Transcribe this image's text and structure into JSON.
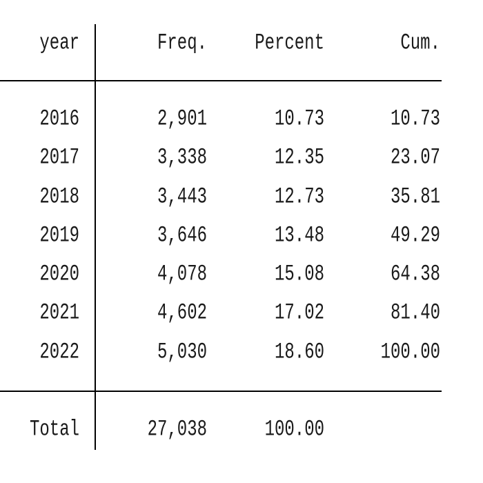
{
  "table": {
    "header": [
      "year",
      "Freq.",
      "Percent",
      "Cum."
    ],
    "rows": [
      [
        "2016",
        "2,901",
        "10.73",
        "10.73"
      ],
      [
        "2017",
        "3,338",
        "12.35",
        "23.07"
      ],
      [
        "2018",
        "3,443",
        "12.73",
        "35.81"
      ],
      [
        "2019",
        "3,646",
        "13.48",
        "49.29"
      ],
      [
        "2020",
        "4,078",
        "15.08",
        "64.38"
      ],
      [
        "2021",
        "4,602",
        "17.02",
        "81.40"
      ],
      [
        "2022",
        "5,030",
        "18.60",
        "100.00"
      ]
    ],
    "total": [
      "Total",
      "27,038",
      "100.00"
    ]
  }
}
